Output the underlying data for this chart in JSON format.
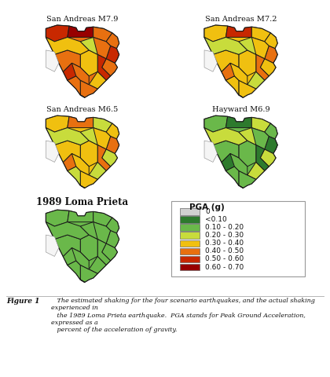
{
  "figure_caption_label": "Figure 1",
  "figure_caption": "   The estimated shaking for the four scenario earthquakes, and the actual shaking experienced in\n   the 1989 Loma Prieta earthquake.  PGA stands for Peak Ground Acceleration, expressed as a\n   percent of the acceleration of gravity.",
  "map_labels": [
    "San Andreas M7.9",
    "San Andreas M7.2",
    "San Andreas M6.5",
    "Hayward M6.9",
    "1989 Loma Prieta"
  ],
  "legend_title": "PGA (g)",
  "legend_entries": [
    {
      "label": "0",
      "color": "#d0d0d0"
    },
    {
      "label": "<0.10",
      "color": "#2d7a2d"
    },
    {
      "label": "0.10 - 0.20",
      "color": "#6ab84a"
    },
    {
      "label": "0.20 - 0.30",
      "color": "#c8dc3c"
    },
    {
      "label": "0.30 - 0.40",
      "color": "#f0c010"
    },
    {
      "label": "0.40 - 0.50",
      "color": "#e87010"
    },
    {
      "label": "0.50 - 0.60",
      "color": "#c82800"
    },
    {
      "label": "0.60 - 0.70",
      "color": "#980000"
    }
  ],
  "bg_color": "#ffffff",
  "map_colors": {
    "m79": {
      "base": "#e87010",
      "districts": [
        "#c82800",
        "#980000",
        "#e87010",
        "#e87010",
        "#c82800",
        "#e87010",
        "#e87010",
        "#c82800",
        "#f0c010",
        "#f0c010",
        "#e87010",
        "#e87010",
        "#c82800",
        "#e87010",
        "#f0c010",
        "#c8dc3c",
        "#e87010"
      ]
    },
    "m72": {
      "base": "#f0c010",
      "districts": [
        "#f0c010",
        "#c82800",
        "#f0c010",
        "#f0c010",
        "#e87010",
        "#f0c010",
        "#f0c010",
        "#e87010",
        "#f0c010",
        "#c8dc3c",
        "#f0c010",
        "#f0c010",
        "#e87010",
        "#f0c010",
        "#c8dc3c",
        "#c8dc3c",
        "#f0c010"
      ]
    },
    "m65": {
      "base": "#f0c010",
      "districts": [
        "#f0c010",
        "#e87010",
        "#c8dc3c",
        "#f0c010",
        "#e87010",
        "#c8dc3c",
        "#f0c010",
        "#e87010",
        "#f0c010",
        "#c8dc3c",
        "#f0c010",
        "#c8dc3c",
        "#e87010",
        "#f0c010",
        "#c8dc3c",
        "#c8dc3c",
        "#f0c010"
      ]
    },
    "hay": {
      "base": "#6ab84a",
      "districts": [
        "#6ab84a",
        "#2d7a2d",
        "#c8dc3c",
        "#6ab84a",
        "#2d7a2d",
        "#c8dc3c",
        "#6ab84a",
        "#2d7a2d",
        "#6ab84a",
        "#c8dc3c",
        "#6ab84a",
        "#6ab84a",
        "#2d7a2d",
        "#6ab84a",
        "#c8dc3c",
        "#c8dc3c",
        "#6ab84a"
      ]
    },
    "lp": {
      "base": "#6ab84a",
      "districts": [
        "#6ab84a",
        "#6ab84a",
        "#6ab84a",
        "#6ab84a",
        "#6ab84a",
        "#6ab84a",
        "#6ab84a",
        "#6ab84a",
        "#6ab84a",
        "#6ab84a",
        "#6ab84a",
        "#6ab84a",
        "#6ab84a",
        "#6ab84a",
        "#6ab84a",
        "#6ab84a",
        "#6ab84a"
      ]
    }
  }
}
